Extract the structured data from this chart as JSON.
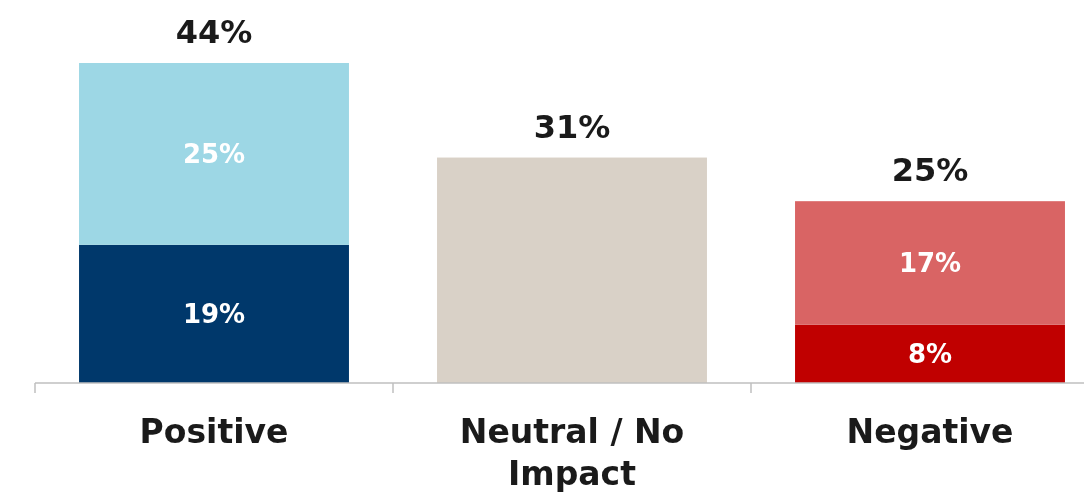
{
  "chart_data": {
    "type": "bar",
    "stacked": true,
    "categories": [
      "Positive",
      "Neutral / No Impact",
      "Negative"
    ],
    "series": [
      {
        "colors": [
          "#00386b",
          "#d9d1c7",
          "#c00000"
        ],
        "values": [
          19,
          31,
          8
        ],
        "value_labels": [
          "19%",
          null,
          "8%"
        ]
      },
      {
        "colors": [
          "#9dd7e5",
          null,
          "#d96464"
        ],
        "values": [
          25,
          null,
          17
        ],
        "value_labels": [
          "25%",
          null,
          "17%"
        ]
      }
    ],
    "totals": [
      "44%",
      "31%",
      "25%"
    ]
  }
}
